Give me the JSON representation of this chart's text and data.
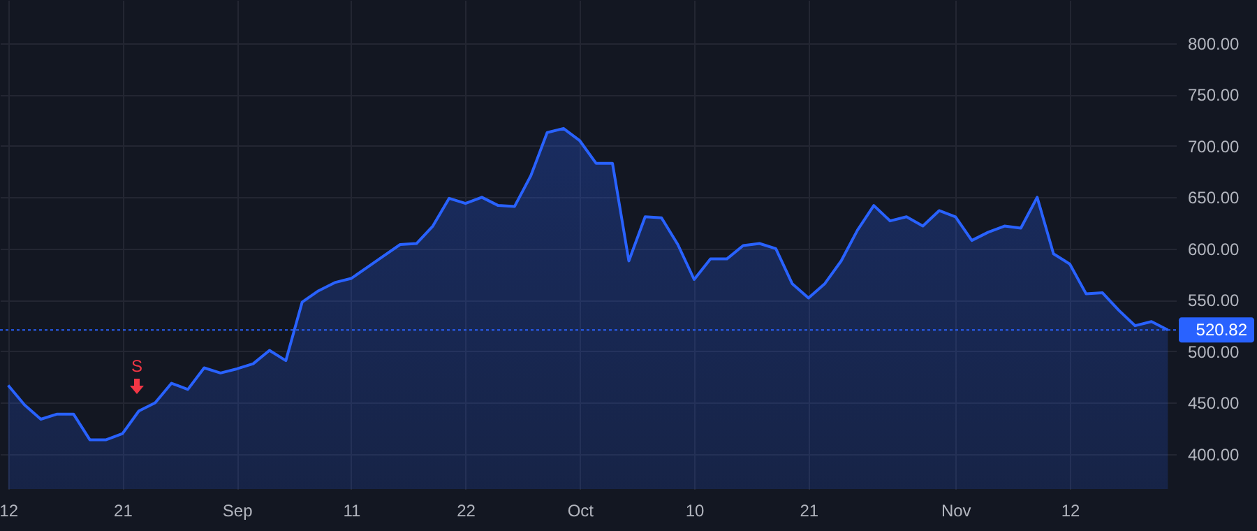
{
  "chart_data": {
    "type": "area",
    "categories": [
      "12",
      null,
      null,
      null,
      null,
      null,
      null,
      "21",
      null,
      null,
      null,
      null,
      null,
      null,
      "Sep",
      null,
      null,
      null,
      null,
      null,
      null,
      "11",
      null,
      null,
      null,
      null,
      null,
      null,
      "22",
      null,
      null,
      null,
      null,
      null,
      null,
      "Oct",
      null,
      null,
      null,
      null,
      null,
      null,
      "10",
      null,
      null,
      null,
      null,
      null,
      null,
      "21",
      null,
      null,
      null,
      null,
      null,
      null,
      null,
      null,
      "Nov",
      null,
      null,
      null,
      null,
      null,
      null,
      "12",
      null,
      null,
      null,
      null,
      null,
      null
    ],
    "series": [
      {
        "color": "#2962ff",
        "values": [
          467,
          448,
          434,
          439,
          439,
          414,
          414,
          420,
          442,
          450,
          469,
          463,
          484,
          479,
          483,
          488,
          501,
          491,
          548,
          559,
          567,
          571,
          582,
          593,
          604,
          605,
          622,
          649,
          644,
          650,
          642,
          641,
          671,
          713,
          717,
          705,
          683,
          683,
          588,
          631,
          630,
          604,
          570,
          590,
          590,
          603,
          605,
          600,
          566,
          552,
          566,
          588,
          618,
          642,
          627,
          631,
          622,
          637,
          631,
          608,
          616,
          622,
          620,
          650,
          595,
          585,
          556,
          557,
          540,
          525,
          529,
          520.82
        ]
      }
    ],
    "ylim": [
      366,
      842
    ],
    "yticks": [
      {
        "value": 400,
        "label": "400.00"
      },
      {
        "value": 450,
        "label": "450.00"
      },
      {
        "value": 500,
        "label": "500.00"
      },
      {
        "value": 550,
        "label": "550.00"
      },
      {
        "value": 600,
        "label": "600.00"
      },
      {
        "value": 650,
        "label": "650.00"
      },
      {
        "value": 700,
        "label": "700.00"
      },
      {
        "value": 750,
        "label": "750.00"
      },
      {
        "value": 800,
        "label": "800.00"
      }
    ],
    "grid": true,
    "ref_lines": [
      {
        "axis": "y",
        "value": 520.82,
        "label": "520.82",
        "color": "#2962ff",
        "line_style": "dotted"
      }
    ],
    "annotations": [
      {
        "text": "S",
        "y": 465
      }
    ]
  }
}
